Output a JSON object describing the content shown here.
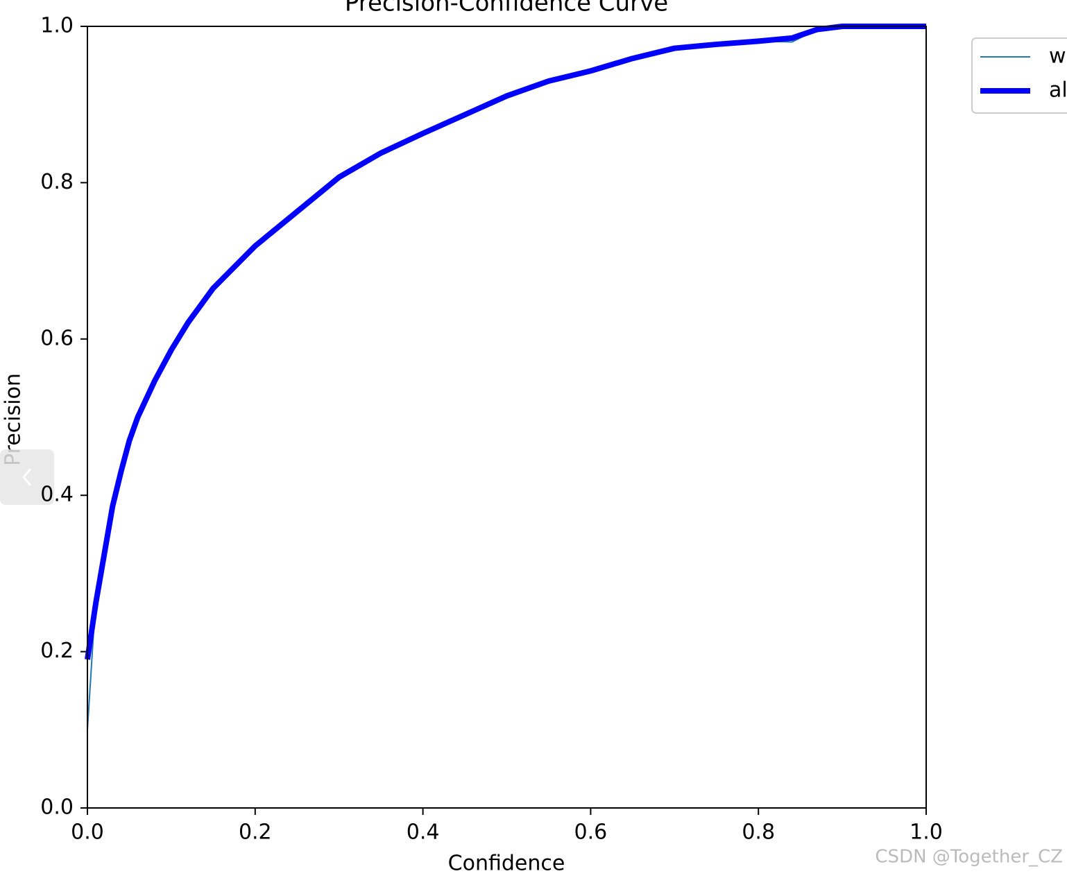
{
  "chart_data": {
    "type": "line",
    "title": "Precision-Confidence Curve",
    "x_label": "Confidence",
    "y_label": "Precision",
    "x": [
      0,
      0.01,
      0.02,
      0.03,
      0.04,
      0.05,
      0.06,
      0.08,
      0.1,
      0.12,
      0.15,
      0.2,
      0.25,
      0.3,
      0.35,
      0.4,
      0.45,
      0.5,
      0.55,
      0.6,
      0.65,
      0.7,
      0.75,
      0.8,
      0.84,
      0.87,
      0.9,
      1.0
    ],
    "series": [
      {
        "name": "w",
        "color": "#1f77b4",
        "width": 2,
        "values": [
          0.1,
          0.27,
          0.33,
          0.39,
          0.43,
          0.47,
          0.5,
          0.546,
          0.586,
          0.621,
          0.665,
          0.719,
          0.763,
          0.807,
          0.838,
          0.863,
          0.887,
          0.911,
          0.93,
          0.943,
          0.959,
          0.972,
          0.977,
          0.981,
          0.98,
          0.996,
          1.0,
          1.0
        ]
      },
      {
        "name": "al",
        "color": "#0000ff",
        "width": 8,
        "values": [
          0.19,
          0.262,
          0.324,
          0.386,
          0.43,
          0.47,
          0.5,
          0.546,
          0.586,
          0.621,
          0.665,
          0.719,
          0.763,
          0.807,
          0.838,
          0.863,
          0.887,
          0.911,
          0.93,
          0.943,
          0.959,
          0.972,
          0.977,
          0.981,
          0.985,
          0.996,
          1.0,
          1.0
        ]
      }
    ],
    "xlim": [
      0,
      1
    ],
    "ylim": [
      0,
      1
    ],
    "xticks": [
      {
        "value": 0,
        "label": "0.0"
      },
      0.2,
      0.4,
      0.6,
      0.8,
      {
        "value": 1,
        "label": "1.0"
      }
    ],
    "yticks": [
      {
        "value": 0,
        "label": "0.0"
      },
      0.2,
      0.4,
      0.6,
      0.8,
      {
        "value": 1,
        "label": "1.0"
      }
    ],
    "grid": false,
    "legend": "outside-upper-right"
  },
  "watermark": "CSDN @Together_CZ"
}
